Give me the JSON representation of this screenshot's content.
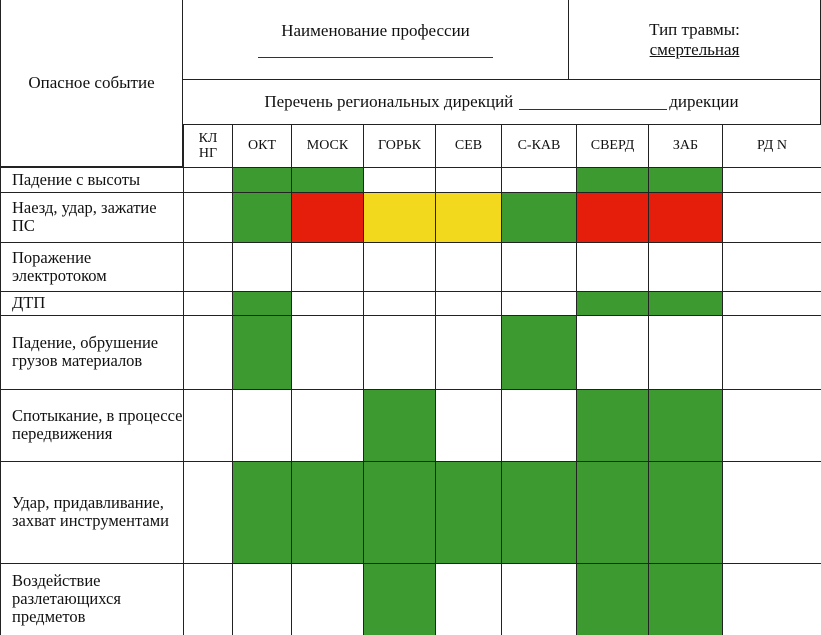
{
  "header": {
    "event_label": "Опасное событие",
    "profession_label": "Наименование профессии",
    "injury_type_label": "Тип травмы:",
    "injury_type_value": "смертельная",
    "directorates_label": "Перечень региональных дирекций",
    "directorates_suffix": "дирекции"
  },
  "columns": [
    "КЛ НГ",
    "ОКТ",
    "МОСК",
    "ГОРЬК",
    "СЕВ",
    "С-КАВ",
    "СВЕРД",
    "ЗАБ",
    "РД N"
  ],
  "colors": {
    "g": "#3d9a31",
    "r": "#e51e0c",
    "y": "#f2d91e"
  },
  "rows": [
    {
      "event": "Падение с высоты",
      "cells": [
        "",
        "g",
        "g",
        "",
        "",
        "",
        "g",
        "g",
        ""
      ]
    },
    {
      "event": "Наезд, удар, зажатие ПС",
      "cells": [
        "",
        "g",
        "r",
        "y",
        "y",
        "g",
        "r",
        "r",
        ""
      ]
    },
    {
      "event": "Поражение электротоком",
      "cells": [
        "",
        "",
        "",
        "",
        "",
        "",
        "",
        "",
        ""
      ]
    },
    {
      "event": "ДТП",
      "cells": [
        "",
        "g",
        "",
        "",
        "",
        "",
        "g",
        "g",
        ""
      ]
    },
    {
      "event": "Падение, обрушение грузов материалов",
      "cells": [
        "",
        "g",
        "",
        "",
        "",
        "g",
        "",
        "",
        ""
      ]
    },
    {
      "event": "Спотыкание, в процессе передвижения",
      "cells": [
        "",
        "",
        "",
        "g",
        "",
        "",
        "g",
        "g",
        ""
      ]
    },
    {
      "event": "Удар, придавливание, захват инструментами",
      "cells": [
        "",
        "g",
        "g",
        "g",
        "g",
        "g",
        "g",
        "g",
        ""
      ]
    },
    {
      "event": "Воздействие разлетающихся предметов",
      "cells": [
        "",
        "",
        "",
        "g",
        "",
        "",
        "g",
        "g",
        ""
      ]
    }
  ]
}
